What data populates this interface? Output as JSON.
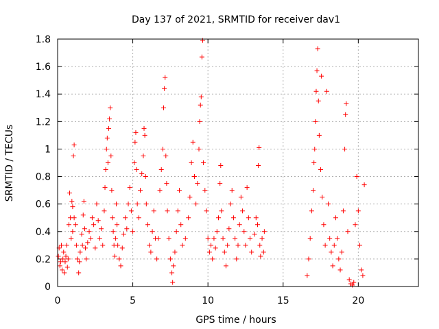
{
  "chart_data": {
    "type": "scatter",
    "title": "Day 137 of 2021, SRMTID for receiver dav1",
    "xlabel": "GPS time / hours",
    "ylabel": "SRMTID / TECUs",
    "xlim": [
      0,
      24
    ],
    "ylim": [
      0,
      1.8
    ],
    "xticks": [
      0,
      5,
      10,
      15,
      20
    ],
    "xtick_labels": [
      "0",
      "5",
      "10",
      "15",
      "20"
    ],
    "yticks": [
      0,
      0.2,
      0.4,
      0.6,
      0.8,
      1.0,
      1.2,
      1.4,
      1.6,
      1.8
    ],
    "ytick_labels": [
      "0",
      "0.2",
      "0.4",
      "0.6",
      "0.8",
      "1",
      "1.2",
      "1.4",
      "1.6",
      "1.8"
    ],
    "grid": true,
    "marker": "+",
    "color": "#ff0000",
    "series": [
      {
        "name": "SRMTID",
        "points": [
          [
            0.05,
            0.22
          ],
          [
            0.1,
            0.28
          ],
          [
            0.15,
            0.15
          ],
          [
            0.2,
            0.18
          ],
          [
            0.25,
            0.3
          ],
          [
            0.3,
            0.12
          ],
          [
            0.35,
            0.2
          ],
          [
            0.4,
            0.25
          ],
          [
            0.45,
            0.1
          ],
          [
            0.5,
            0.18
          ],
          [
            0.55,
            0.22
          ],
          [
            0.6,
            0.3
          ],
          [
            0.65,
            0.14
          ],
          [
            0.7,
            0.2
          ],
          [
            0.75,
            0.45
          ],
          [
            0.8,
            0.68
          ],
          [
            0.85,
            0.5
          ],
          [
            0.9,
            0.35
          ],
          [
            0.95,
            0.62
          ],
          [
            1.0,
            0.58
          ],
          [
            1.05,
            0.95
          ],
          [
            1.1,
            1.03
          ],
          [
            1.0,
            0.4
          ],
          [
            1.1,
            0.5
          ],
          [
            1.2,
            0.45
          ],
          [
            1.25,
            0.3
          ],
          [
            1.3,
            0.2
          ],
          [
            1.4,
            0.1
          ],
          [
            1.45,
            0.18
          ],
          [
            1.5,
            0.25
          ],
          [
            1.6,
            0.38
          ],
          [
            1.65,
            0.3
          ],
          [
            1.7,
            0.52
          ],
          [
            1.75,
            0.62
          ],
          [
            1.8,
            0.42
          ],
          [
            1.85,
            0.28
          ],
          [
            1.9,
            0.2
          ],
          [
            2.0,
            0.32
          ],
          [
            2.1,
            0.4
          ],
          [
            2.2,
            0.35
          ],
          [
            2.3,
            0.5
          ],
          [
            2.4,
            0.45
          ],
          [
            2.5,
            0.28
          ],
          [
            2.6,
            0.6
          ],
          [
            2.7,
            0.48
          ],
          [
            2.8,
            0.35
          ],
          [
            2.9,
            0.42
          ],
          [
            3.0,
            0.3
          ],
          [
            3.1,
            0.55
          ],
          [
            3.15,
            0.72
          ],
          [
            3.2,
            0.85
          ],
          [
            3.25,
            1.0
          ],
          [
            3.3,
            1.08
          ],
          [
            3.35,
            0.9
          ],
          [
            3.4,
            1.15
          ],
          [
            3.45,
            1.22
          ],
          [
            3.5,
            1.3
          ],
          [
            3.55,
            0.95
          ],
          [
            3.6,
            0.7
          ],
          [
            3.65,
            0.5
          ],
          [
            3.7,
            0.4
          ],
          [
            3.75,
            0.3
          ],
          [
            3.8,
            0.22
          ],
          [
            3.85,
            0.35
          ],
          [
            3.9,
            0.6
          ],
          [
            3.95,
            0.45
          ],
          [
            4.0,
            0.3
          ],
          [
            4.1,
            0.2
          ],
          [
            4.2,
            0.15
          ],
          [
            4.3,
            0.28
          ],
          [
            4.4,
            0.38
          ],
          [
            4.5,
            0.5
          ],
          [
            4.6,
            0.42
          ],
          [
            4.7,
            0.6
          ],
          [
            4.8,
            0.72
          ],
          [
            4.9,
            0.55
          ],
          [
            5.0,
            0.4
          ],
          [
            5.1,
            0.9
          ],
          [
            5.15,
            1.05
          ],
          [
            5.2,
            1.12
          ],
          [
            5.25,
            0.85
          ],
          [
            5.3,
            0.6
          ],
          [
            5.4,
            0.5
          ],
          [
            5.5,
            0.7
          ],
          [
            5.6,
            0.82
          ],
          [
            5.7,
            0.95
          ],
          [
            5.75,
            1.15
          ],
          [
            5.8,
            1.1
          ],
          [
            5.85,
            0.8
          ],
          [
            5.9,
            0.6
          ],
          [
            6.0,
            0.45
          ],
          [
            6.1,
            0.3
          ],
          [
            6.2,
            0.25
          ],
          [
            6.3,
            0.4
          ],
          [
            6.4,
            0.55
          ],
          [
            6.5,
            0.35
          ],
          [
            6.6,
            0.2
          ],
          [
            6.7,
            0.35
          ],
          [
            6.8,
            0.7
          ],
          [
            6.9,
            0.85
          ],
          [
            7.0,
            1.0
          ],
          [
            7.05,
            1.3
          ],
          [
            7.1,
            1.44
          ],
          [
            7.15,
            1.52
          ],
          [
            7.2,
            0.95
          ],
          [
            7.25,
            0.75
          ],
          [
            7.3,
            0.55
          ],
          [
            7.4,
            0.35
          ],
          [
            7.5,
            0.2
          ],
          [
            7.6,
            0.1
          ],
          [
            7.65,
            0.03
          ],
          [
            7.7,
            0.15
          ],
          [
            7.8,
            0.25
          ],
          [
            7.9,
            0.4
          ],
          [
            8.0,
            0.55
          ],
          [
            8.1,
            0.7
          ],
          [
            8.2,
            0.45
          ],
          [
            8.3,
            0.3
          ],
          [
            8.5,
            0.35
          ],
          [
            8.7,
            0.5
          ],
          [
            8.8,
            0.65
          ],
          [
            8.9,
            0.9
          ],
          [
            9.0,
            1.05
          ],
          [
            9.1,
            0.8
          ],
          [
            9.2,
            0.6
          ],
          [
            9.3,
            0.75
          ],
          [
            9.4,
            1.0
          ],
          [
            9.45,
            1.2
          ],
          [
            9.5,
            1.32
          ],
          [
            9.55,
            1.38
          ],
          [
            9.6,
            1.67
          ],
          [
            9.65,
            1.79
          ],
          [
            9.7,
            0.9
          ],
          [
            9.8,
            0.7
          ],
          [
            9.9,
            0.55
          ],
          [
            10.0,
            0.35
          ],
          [
            10.1,
            0.25
          ],
          [
            10.2,
            0.3
          ],
          [
            10.3,
            0.2
          ],
          [
            10.4,
            0.35
          ],
          [
            10.5,
            0.28
          ],
          [
            10.6,
            0.4
          ],
          [
            10.7,
            0.5
          ],
          [
            10.8,
            0.75
          ],
          [
            10.85,
            0.88
          ],
          [
            10.9,
            0.55
          ],
          [
            11.0,
            0.35
          ],
          [
            11.1,
            0.25
          ],
          [
            11.2,
            0.15
          ],
          [
            11.3,
            0.3
          ],
          [
            11.4,
            0.42
          ],
          [
            11.5,
            0.6
          ],
          [
            11.6,
            0.7
          ],
          [
            11.7,
            0.5
          ],
          [
            11.8,
            0.35
          ],
          [
            11.9,
            0.2
          ],
          [
            12.0,
            0.3
          ],
          [
            12.1,
            0.45
          ],
          [
            12.2,
            0.65
          ],
          [
            12.3,
            0.55
          ],
          [
            12.4,
            0.4
          ],
          [
            12.5,
            0.3
          ],
          [
            12.6,
            0.72
          ],
          [
            12.7,
            0.5
          ],
          [
            12.8,
            0.35
          ],
          [
            12.9,
            0.25
          ],
          [
            13.1,
            0.38
          ],
          [
            13.2,
            0.5
          ],
          [
            13.3,
            0.45
          ],
          [
            13.35,
            0.88
          ],
          [
            13.4,
            1.01
          ],
          [
            13.45,
            0.3
          ],
          [
            13.5,
            0.22
          ],
          [
            13.6,
            0.35
          ],
          [
            13.7,
            0.25
          ],
          [
            13.75,
            0.4
          ],
          [
            16.6,
            0.08
          ],
          [
            16.7,
            0.2
          ],
          [
            16.8,
            0.35
          ],
          [
            16.9,
            0.55
          ],
          [
            17.0,
            0.7
          ],
          [
            17.05,
            0.9
          ],
          [
            17.1,
            1.0
          ],
          [
            17.15,
            1.2
          ],
          [
            17.2,
            1.42
          ],
          [
            17.25,
            1.57
          ],
          [
            17.3,
            1.73
          ],
          [
            17.35,
            1.35
          ],
          [
            17.4,
            1.1
          ],
          [
            17.5,
            0.85
          ],
          [
            17.55,
            1.53
          ],
          [
            17.6,
            0.65
          ],
          [
            17.7,
            0.45
          ],
          [
            17.8,
            0.3
          ],
          [
            17.9,
            1.42
          ],
          [
            18.0,
            0.6
          ],
          [
            18.1,
            0.35
          ],
          [
            18.2,
            0.25
          ],
          [
            18.3,
            0.15
          ],
          [
            18.4,
            0.3
          ],
          [
            18.5,
            0.5
          ],
          [
            18.6,
            0.35
          ],
          [
            18.7,
            0.2
          ],
          [
            18.8,
            0.12
          ],
          [
            18.9,
            0.25
          ],
          [
            19.0,
            0.55
          ],
          [
            19.1,
            1.0
          ],
          [
            19.15,
            1.25
          ],
          [
            19.2,
            1.33
          ],
          [
            19.3,
            0.4
          ],
          [
            19.4,
            0.05
          ],
          [
            19.5,
            0.02
          ],
          [
            19.6,
            0.01
          ],
          [
            19.7,
            0.03
          ],
          [
            19.8,
            0.45
          ],
          [
            19.9,
            0.8
          ],
          [
            20.0,
            0.55
          ],
          [
            20.1,
            0.3
          ],
          [
            20.2,
            0.12
          ],
          [
            20.3,
            0.08
          ],
          [
            20.4,
            0.74
          ]
        ]
      }
    ]
  }
}
